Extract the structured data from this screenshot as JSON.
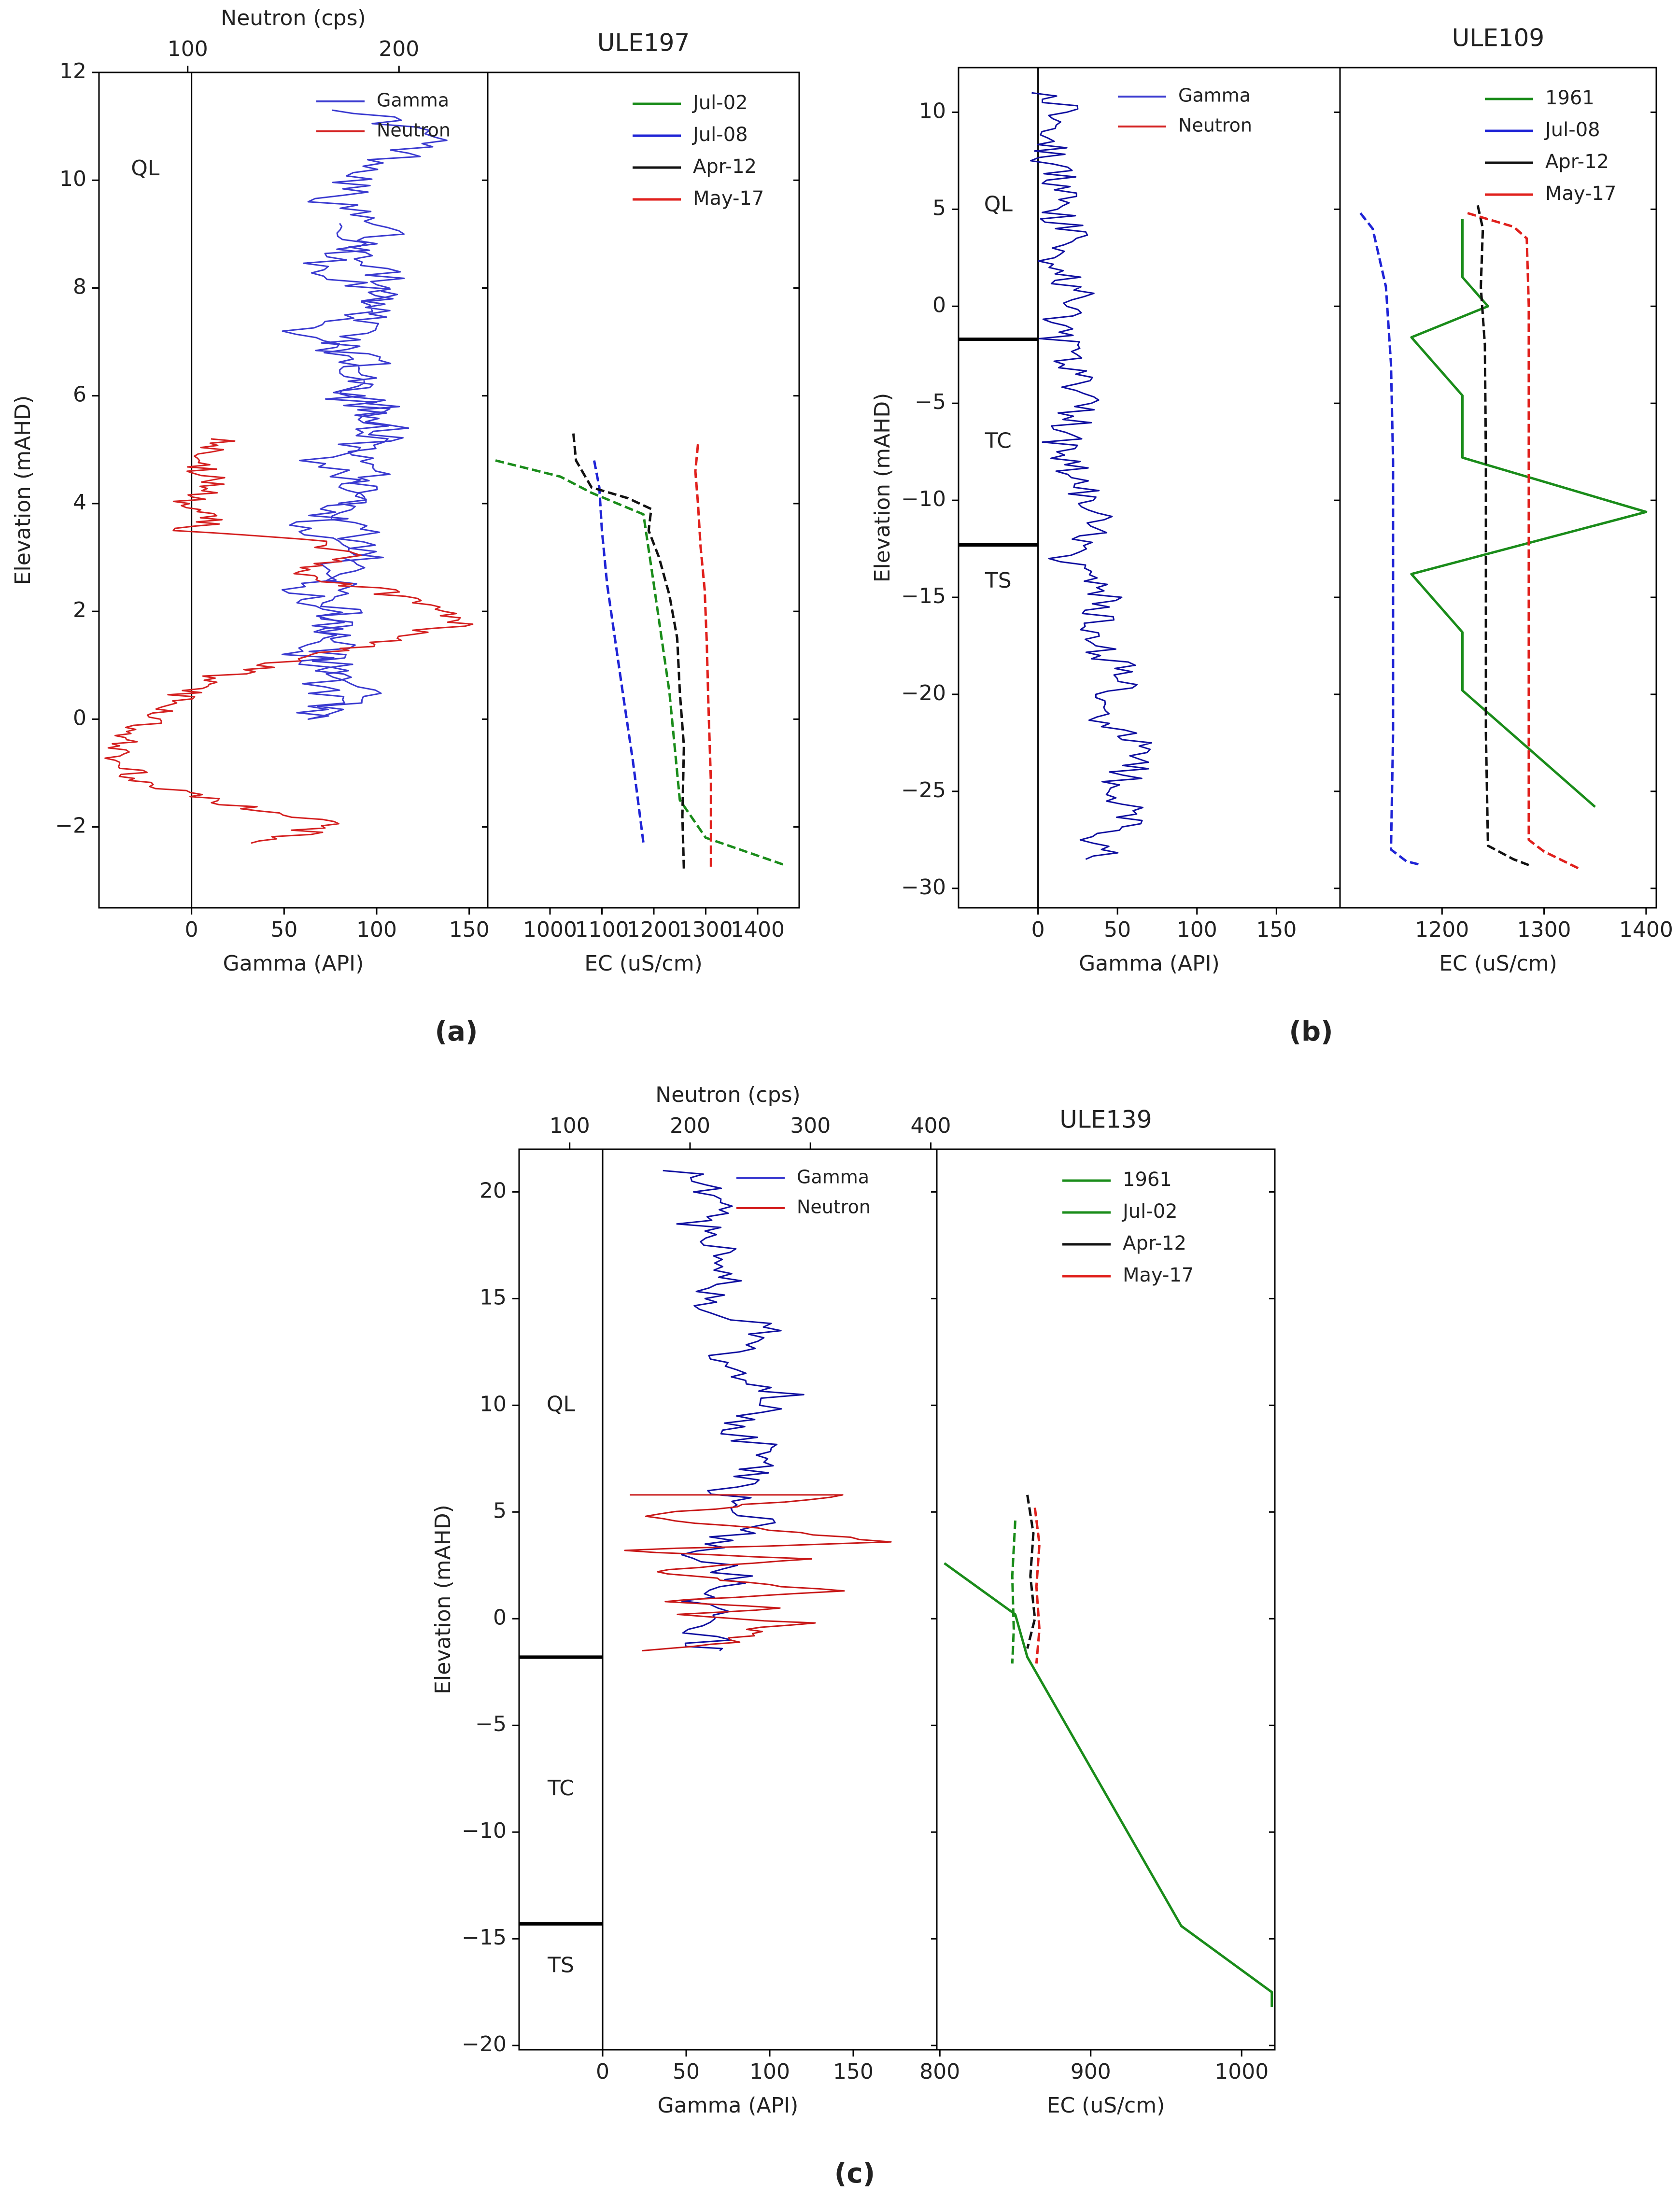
{
  "panels": [
    {
      "label": "a",
      "title": "ULE197",
      "ylabel": "Elevation (mAHD)",
      "ylim": [
        -3.5,
        12
      ],
      "yticks": [
        -2,
        0,
        2,
        4,
        6,
        8,
        10,
        12
      ],
      "units": [
        {
          "name": "QL",
          "from": -3.5,
          "to": 12,
          "label_y": 10.2
        }
      ],
      "boundaries": [],
      "gamma_axis": {
        "label": "Gamma (API)",
        "lim": [
          -50,
          160
        ],
        "ticks": [
          0,
          50,
          100,
          150
        ]
      },
      "neutron_axis": {
        "label": "Neutron (cps)",
        "lim": [
          58,
          242
        ],
        "ticks": [
          100,
          200
        ]
      },
      "ec_axis": {
        "label": "EC (uS/cm)",
        "lim": [
          880,
          1480
        ],
        "ticks": [
          1000,
          1100,
          1200,
          1300,
          1400
        ]
      },
      "log_legend": [
        "Gamma",
        "Neutron"
      ],
      "ec_legend": [
        {
          "name": "Jul-02",
          "color": "#1a8c1a"
        },
        {
          "name": "Jul-08",
          "color": "#1f24d6"
        },
        {
          "name": "Apr-12",
          "color": "#111111"
        },
        {
          "name": "May-17",
          "color": "#e0201c"
        }
      ]
    },
    {
      "label": "b",
      "title": "ULE109",
      "ylabel": "Elevation (mAHD)",
      "ylim": [
        -31,
        12.3
      ],
      "yticks": [
        -30,
        -25,
        -20,
        -15,
        -10,
        -5,
        0,
        5,
        10
      ],
      "units": [
        {
          "name": "QL",
          "from": -1.7,
          "to": 12.3,
          "label_y": 5.2
        },
        {
          "name": "TC",
          "from": -12.3,
          "to": -1.7,
          "label_y": -7
        },
        {
          "name": "TS",
          "from": -31,
          "to": -12.3,
          "label_y": -14.2
        }
      ],
      "boundaries": [
        -1.7,
        -12.3
      ],
      "gamma_axis": {
        "label": "Gamma (API)",
        "lim": [
          -50,
          190
        ],
        "ticks": [
          0,
          50,
          100,
          150
        ]
      },
      "ec_axis": {
        "label": "EC (uS/cm)",
        "lim": [
          1100,
          1410
        ],
        "ticks": [
          1200,
          1300,
          1400
        ]
      },
      "log_legend": [
        "Gamma",
        "Neutron"
      ],
      "ec_legend": [
        {
          "name": "1961",
          "color": "#1a8c1a"
        },
        {
          "name": "Jul-08",
          "color": "#1f24d6"
        },
        {
          "name": "Apr-12",
          "color": "#111111"
        },
        {
          "name": "May-17",
          "color": "#e0201c"
        }
      ]
    },
    {
      "label": "c",
      "title": "ULE139",
      "ylabel": "Elevation (mAHD)",
      "ylim": [
        -20.2,
        22
      ],
      "yticks": [
        -20,
        -15,
        -10,
        -5,
        0,
        5,
        10,
        15,
        20
      ],
      "units": [
        {
          "name": "QL",
          "from": -1.8,
          "to": 22,
          "label_y": 10
        },
        {
          "name": "TC",
          "from": -14.3,
          "to": -1.8,
          "label_y": -8
        },
        {
          "name": "TS",
          "from": -20.2,
          "to": -14.3,
          "label_y": -16.3
        }
      ],
      "boundaries": [
        -1.8,
        -14.3
      ],
      "gamma_axis": {
        "label": "Gamma (API)",
        "lim": [
          -50,
          200
        ],
        "ticks": [
          0,
          50,
          100,
          150
        ]
      },
      "neutron_axis": {
        "label": "Neutron (cps)",
        "lim": [
          58,
          405
        ],
        "ticks": [
          100,
          200,
          300,
          400
        ]
      },
      "ec_axis": {
        "label": "EC (uS/cm)",
        "lim": [
          798,
          1022
        ],
        "ticks": [
          800,
          900,
          1000
        ]
      },
      "log_legend": [
        "Gamma",
        "Neutron"
      ],
      "ec_legend": [
        {
          "name": "1961",
          "color": "#1a8c1a"
        },
        {
          "name": "Jul-02",
          "color": "#1a8c1a"
        },
        {
          "name": "Apr-12",
          "color": "#111111"
        },
        {
          "name": "May-17",
          "color": "#e0201c"
        }
      ]
    }
  ],
  "chart_data": [
    {
      "type": "line",
      "title": "ULE197",
      "xlabel": "Gamma (API) / Neutron (cps)",
      "ylabel": "Elevation (mAHD)",
      "series": [
        {
          "name": "Gamma",
          "axis": "gamma",
          "color": "#3a3ad0",
          "x": [
            90,
            130,
            100,
            75,
            105,
            70,
            110,
            60,
            95,
            80,
            115,
            70,
            100,
            65,
            90,
            55,
            85,
            60,
            95,
            70,
            100,
            75,
            105,
            80
          ],
          "y": [
            11.3,
            10.8,
            10.2,
            9.6,
            9.0,
            8.4,
            7.8,
            7.2,
            6.6,
            6.0,
            5.4,
            4.8,
            4.2,
            3.6,
            3.0,
            2.4,
            1.8,
            1.2,
            0.6,
            0.0,
            5.8,
            6.8,
            8.0,
            9.2
          ]
        },
        {
          "name": "Neutron",
          "axis": "neutron",
          "color": "#d42020",
          "x": [
            120,
            100,
            115,
            96,
            113,
            100,
            160,
            175,
            150,
            190,
            220,
            230,
            200,
            160,
            115,
            90,
            80,
            65,
            78,
            100,
            135,
            170,
            155,
            130
          ],
          "y": [
            5.2,
            4.8,
            4.4,
            4.0,
            3.7,
            3.5,
            3.3,
            3.0,
            2.7,
            2.4,
            2.0,
            1.8,
            1.5,
            1.2,
            0.8,
            0.3,
            0.0,
            -0.8,
            -1.1,
            -1.4,
            -1.7,
            -1.9,
            -2.1,
            -2.3
          ]
        },
        {
          "name": "Jul-02",
          "axis": "ec",
          "color": "#1a8c1a",
          "x": [
            895,
            1020,
            1080,
            1180,
            1200,
            1215,
            1230,
            1250,
            1300,
            1450
          ],
          "y": [
            4.8,
            4.5,
            4.2,
            3.8,
            2.5,
            1.5,
            0.5,
            -1.5,
            -2.2,
            -2.7
          ]
        },
        {
          "name": "Jul-08",
          "axis": "ec",
          "color": "#1f24d6",
          "x": [
            1085,
            1095,
            1100,
            1110,
            1125,
            1140,
            1160,
            1180
          ],
          "y": [
            4.8,
            4.3,
            3.5,
            2.5,
            1.5,
            0.5,
            -0.8,
            -2.3
          ]
        },
        {
          "name": "Apr-12",
          "axis": "ec",
          "color": "#111111",
          "x": [
            1045,
            1050,
            1080,
            1150,
            1195,
            1190,
            1210,
            1230,
            1245,
            1250,
            1258,
            1255,
            1258
          ],
          "y": [
            5.3,
            4.8,
            4.3,
            4.1,
            3.9,
            3.5,
            3.0,
            2.3,
            1.5,
            0.5,
            -0.5,
            -1.8,
            -2.8
          ]
        },
        {
          "name": "May-17",
          "axis": "ec",
          "color": "#e0201c",
          "x": [
            1285,
            1280,
            1285,
            1290,
            1298,
            1302,
            1305,
            1310,
            1310
          ],
          "y": [
            5.1,
            4.6,
            4.0,
            3.2,
            2.4,
            1.4,
            0.3,
            -1.2,
            -2.8
          ]
        }
      ]
    },
    {
      "type": "line",
      "title": "ULE109",
      "xlabel": "Gamma (API)",
      "ylabel": "Elevation (mAHD)",
      "series": [
        {
          "name": "Gamma",
          "axis": "gamma",
          "color": "#1010a0",
          "x": [
            10,
            20,
            5,
            15,
            8,
            22,
            10,
            25,
            12,
            18,
            30,
            15,
            25,
            35,
            20,
            40,
            30,
            55,
            35,
            70,
            45,
            60,
            40,
            50,
            30
          ],
          "y": [
            11,
            9.5,
            8,
            6.5,
            5,
            3.5,
            2,
            0.5,
            -1,
            -3,
            -5,
            -7,
            -9,
            -11,
            -13,
            -15,
            -17,
            -19,
            -21,
            -23,
            -25,
            -26.5,
            -27.5,
            -28,
            -28.5
          ]
        },
        {
          "name": "1961",
          "axis": "ec",
          "color": "#1a8c1a",
          "x": [
            1220,
            1220,
            1245,
            1170,
            1220,
            1220,
            1400,
            1170,
            1220,
            1220,
            1350
          ],
          "y": [
            4.5,
            1.5,
            0,
            -1.6,
            -4.6,
            -7.8,
            -10.6,
            -13.8,
            -16.8,
            -19.8,
            -25.8
          ]
        },
        {
          "name": "Jul-08",
          "axis": "ec",
          "color": "#1f24d6",
          "x": [
            1120,
            1132,
            1145,
            1150,
            1152,
            1152,
            1152,
            1150,
            1165,
            1180
          ],
          "y": [
            4.8,
            4.0,
            1.0,
            -3.0,
            -8.0,
            -15.0,
            -22.0,
            -28.0,
            -28.6,
            -28.8
          ]
        },
        {
          "name": "Apr-12",
          "axis": "ec",
          "color": "#111111",
          "x": [
            1235,
            1240,
            1238,
            1242,
            1243,
            1243,
            1243,
            1245,
            1270,
            1285
          ],
          "y": [
            5.2,
            4.0,
            1.0,
            -2.0,
            -8.0,
            -15.0,
            -22.0,
            -27.8,
            -28.5,
            -28.8
          ]
        },
        {
          "name": "May-17",
          "axis": "ec",
          "color": "#e0201c",
          "x": [
            1225,
            1270,
            1283,
            1285,
            1285,
            1285,
            1285,
            1300,
            1335
          ],
          "y": [
            4.8,
            4.1,
            3.5,
            0.0,
            -10.0,
            -20.0,
            -27.5,
            -28.1,
            -29.0
          ]
        }
      ]
    },
    {
      "type": "line",
      "title": "ULE139",
      "xlabel": "Gamma (API) / Neutron (cps)",
      "ylabel": "Elevation (mAHD)",
      "series": [
        {
          "name": "Gamma",
          "axis": "gamma",
          "color": "#1010a0",
          "x": [
            50,
            65,
            55,
            80,
            60,
            95,
            70,
            110,
            80,
            100,
            75,
            90,
            60,
            80,
            55,
            70,
            50,
            65,
            50,
            70
          ],
          "y": [
            21,
            19.5,
            18,
            16.5,
            15,
            13.5,
            12,
            10.5,
            9,
            7.5,
            6,
            4.5,
            3,
            2,
            1,
            0,
            -0.5,
            -1,
            -1.3,
            -1.5
          ]
        },
        {
          "name": "Neutron",
          "axis": "neutron",
          "color": "#c81818",
          "x": [
            160,
            330,
            155,
            370,
            140,
            300,
            165,
            320,
            170,
            280,
            180,
            300,
            240,
            260,
            230,
            250,
            200,
            160
          ],
          "y": [
            5.8,
            5.8,
            4.8,
            3.6,
            3.2,
            2.8,
            2.2,
            1.3,
            0.8,
            0.5,
            0.2,
            -0.2,
            -0.5,
            -0.7,
            -0.9,
            -1.1,
            -1.3,
            -1.5
          ]
        },
        {
          "name": "1961",
          "axis": "ec",
          "color": "#1a8c1a",
          "x": [
            803,
            850,
            858,
            960,
            1020,
            1020
          ],
          "y": [
            2.6,
            0.2,
            -1.8,
            -14.4,
            -17.5,
            -18.2
          ]
        },
        {
          "name": "Jul-02",
          "axis": "ec",
          "color": "#1a8c1a",
          "x": [
            850,
            848,
            849,
            848
          ],
          "y": [
            4.6,
            2.0,
            -0.5,
            -2.1
          ]
        },
        {
          "name": "Apr-12",
          "axis": "ec",
          "color": "#111111",
          "x": [
            858,
            862,
            860,
            863,
            858
          ],
          "y": [
            5.8,
            4.0,
            2.0,
            0.0,
            -1.4
          ]
        },
        {
          "name": "May-17",
          "axis": "ec",
          "color": "#e0201c",
          "x": [
            863,
            866,
            864,
            866,
            864
          ],
          "y": [
            5.2,
            3.5,
            1.5,
            -0.5,
            -2.1
          ]
        }
      ]
    }
  ]
}
